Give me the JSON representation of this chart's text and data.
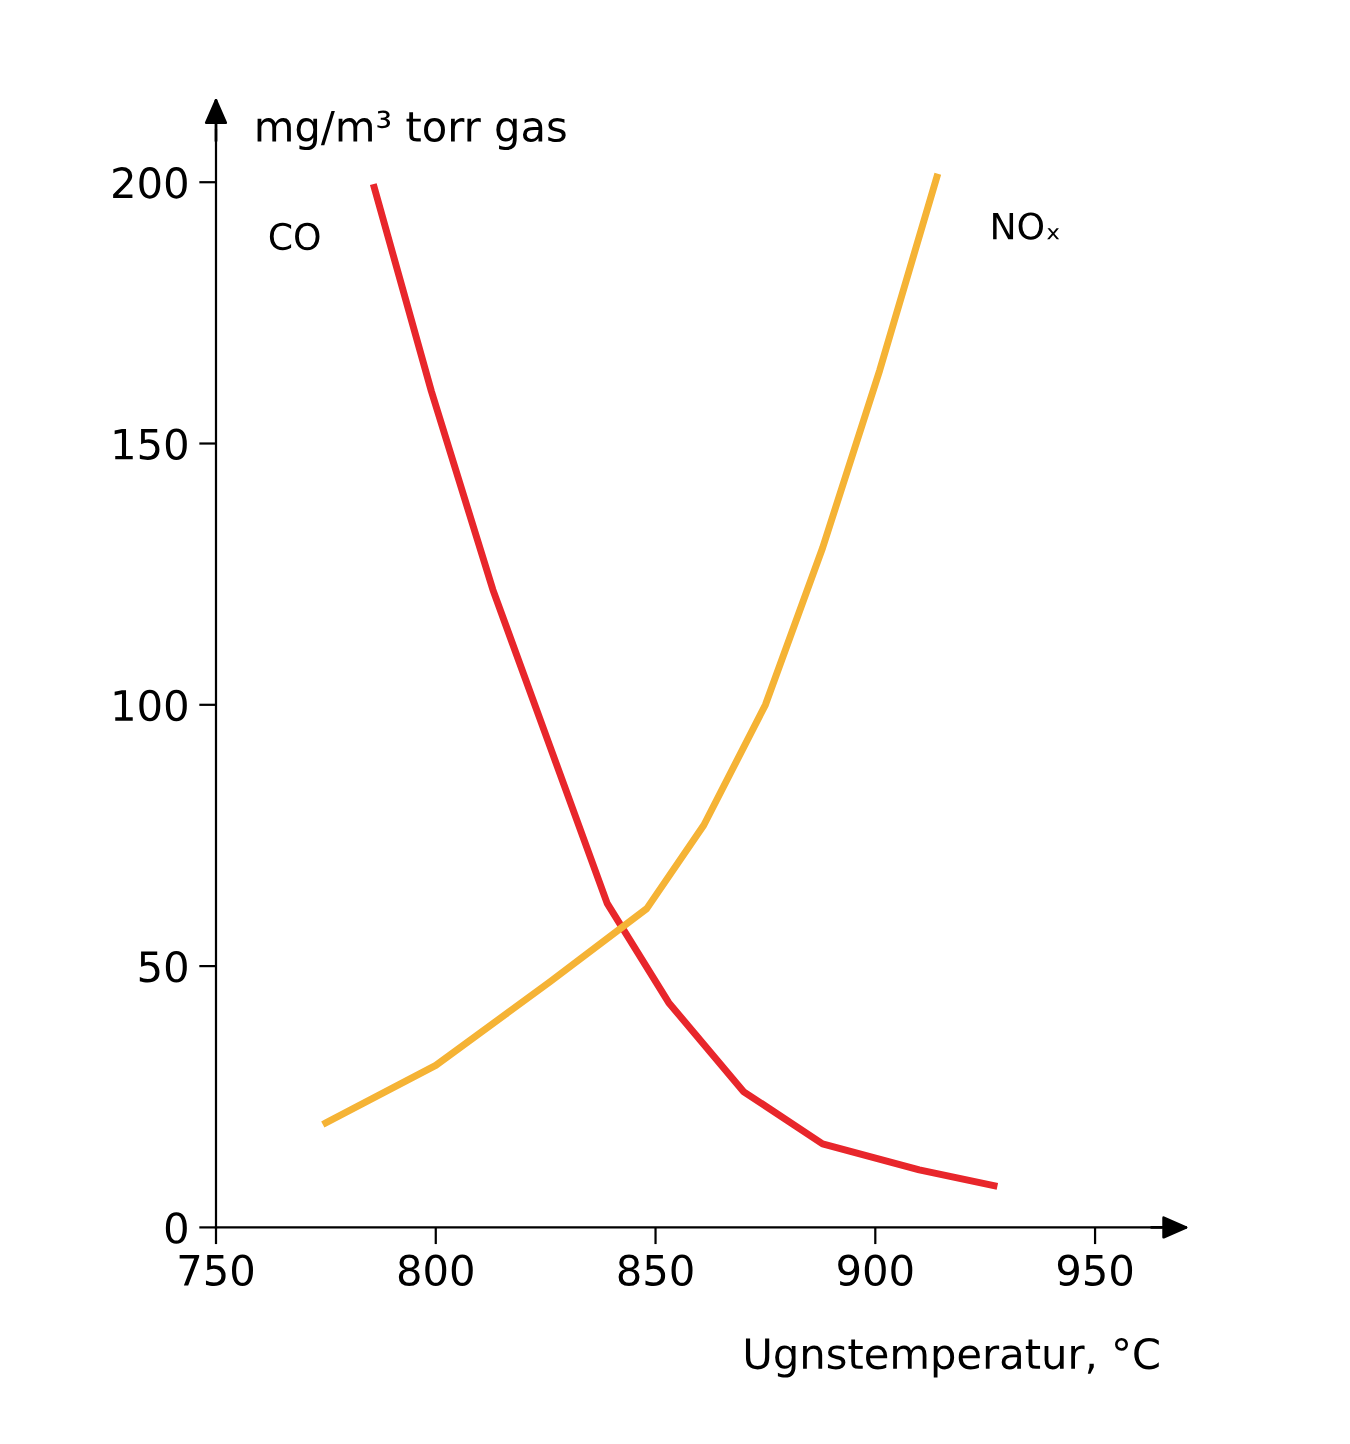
{
  "chart_data": {
    "type": "line",
    "xlabel": "Ugnstemperatur, °C",
    "ylabel": "mg/m³ torr gas",
    "xlim": [
      750,
      965
    ],
    "ylim": [
      0,
      210
    ],
    "xticks": [
      750,
      800,
      850,
      900,
      950
    ],
    "yticks": [
      0,
      50,
      100,
      150,
      200
    ],
    "grid": false,
    "legend": false,
    "marker": "none",
    "line_style": "solid",
    "series": [
      {
        "name": "CO",
        "color": "#e8262b",
        "x": [
          786,
          799,
          813,
          826,
          839,
          853,
          870,
          888,
          910,
          927
        ],
        "values": [
          199,
          160,
          122,
          92,
          62,
          43,
          26,
          16,
          11,
          8
        ]
      },
      {
        "name": "NOₓ",
        "color": "#f5b335",
        "x": [
          775,
          800,
          826,
          848,
          861,
          875,
          888,
          901,
          914
        ],
        "values": [
          20,
          31,
          47,
          61,
          77,
          100,
          130,
          164,
          201
        ]
      }
    ]
  }
}
